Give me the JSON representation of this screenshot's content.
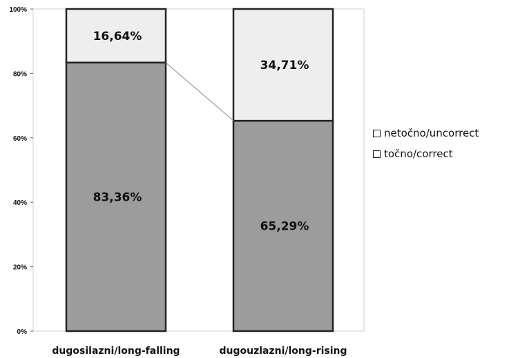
{
  "chart_data": {
    "type": "bar",
    "stacked": true,
    "percent_stacked": true,
    "categories": [
      "dugosilazni/long-falling",
      "dugouzlazni/long-rising"
    ],
    "series": [
      {
        "name": "točno/correct",
        "values": [
          83.36,
          65.29
        ],
        "labels": [
          "83,36%",
          "65,29%"
        ],
        "color": "#9c9c9c"
      },
      {
        "name": "netočno/uncorrect",
        "values": [
          16.64,
          34.71
        ],
        "labels": [
          "16,64%",
          "34,71%"
        ],
        "color": "#eeeeee"
      }
    ],
    "yticks": [
      "0%",
      "20%",
      "40%",
      "60%",
      "80%",
      "100%"
    ],
    "ylim": [
      0,
      100
    ],
    "grid": false,
    "series_lines": true,
    "legend_position": "right"
  }
}
